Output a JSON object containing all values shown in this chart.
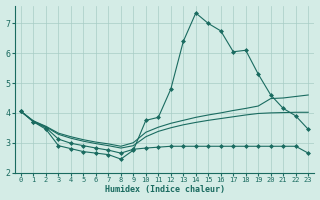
{
  "xlabel": "Humidex (Indice chaleur)",
  "bg_color": "#d4ece6",
  "grid_color": "#a8cdc5",
  "line_color": "#1a6b60",
  "xlim": [
    -0.5,
    23.5
  ],
  "ylim": [
    2.0,
    7.6
  ],
  "xticks": [
    0,
    1,
    2,
    3,
    4,
    5,
    6,
    7,
    8,
    9,
    10,
    11,
    12,
    13,
    14,
    15,
    16,
    17,
    18,
    19,
    20,
    21,
    22,
    23
  ],
  "yticks": [
    2,
    3,
    4,
    5,
    6,
    7
  ],
  "series": [
    {
      "x": [
        0,
        1,
        2,
        3,
        4,
        5,
        6,
        7,
        8,
        9,
        10,
        11,
        12,
        13,
        14,
        15,
        16,
        17,
        18,
        19,
        20,
        21,
        22,
        23
      ],
      "y": [
        4.05,
        3.7,
        3.45,
        2.9,
        2.8,
        2.7,
        2.65,
        2.6,
        2.45,
        2.75,
        3.75,
        3.85,
        4.8,
        6.4,
        7.35,
        7.0,
        6.75,
        6.05,
        6.1,
        5.3,
        4.6,
        4.15,
        3.9,
        3.45
      ],
      "marker": true
    },
    {
      "x": [
        0,
        1,
        2,
        3,
        4,
        5,
        6,
        7,
        8,
        9,
        10,
        11,
        12,
        13,
        14,
        15,
        16,
        17,
        18,
        19,
        20,
        21,
        22,
        23
      ],
      "y": [
        4.05,
        3.73,
        3.55,
        3.32,
        3.2,
        3.1,
        3.02,
        2.96,
        2.88,
        3.0,
        3.35,
        3.52,
        3.65,
        3.75,
        3.85,
        3.93,
        4.0,
        4.08,
        4.15,
        4.23,
        4.48,
        4.5,
        4.55,
        4.6
      ],
      "marker": false
    },
    {
      "x": [
        0,
        1,
        2,
        3,
        4,
        5,
        6,
        7,
        8,
        9,
        10,
        11,
        12,
        13,
        14,
        15,
        16,
        17,
        18,
        19,
        20,
        21,
        22,
        23
      ],
      "y": [
        4.05,
        3.72,
        3.53,
        3.28,
        3.15,
        3.05,
        2.97,
        2.9,
        2.82,
        2.9,
        3.2,
        3.38,
        3.5,
        3.6,
        3.68,
        3.75,
        3.81,
        3.87,
        3.93,
        3.98,
        4.0,
        4.01,
        4.02,
        4.02
      ],
      "marker": false
    },
    {
      "x": [
        0,
        1,
        2,
        3,
        4,
        5,
        6,
        7,
        8,
        9,
        10,
        11,
        12,
        13,
        14,
        15,
        16,
        17,
        18,
        19,
        20,
        21,
        22,
        23
      ],
      "y": [
        4.05,
        3.7,
        3.5,
        3.12,
        2.98,
        2.9,
        2.82,
        2.75,
        2.65,
        2.78,
        2.82,
        2.85,
        2.88,
        2.88,
        2.88,
        2.88,
        2.88,
        2.88,
        2.88,
        2.88,
        2.88,
        2.88,
        2.88,
        2.65
      ],
      "marker": true
    }
  ]
}
